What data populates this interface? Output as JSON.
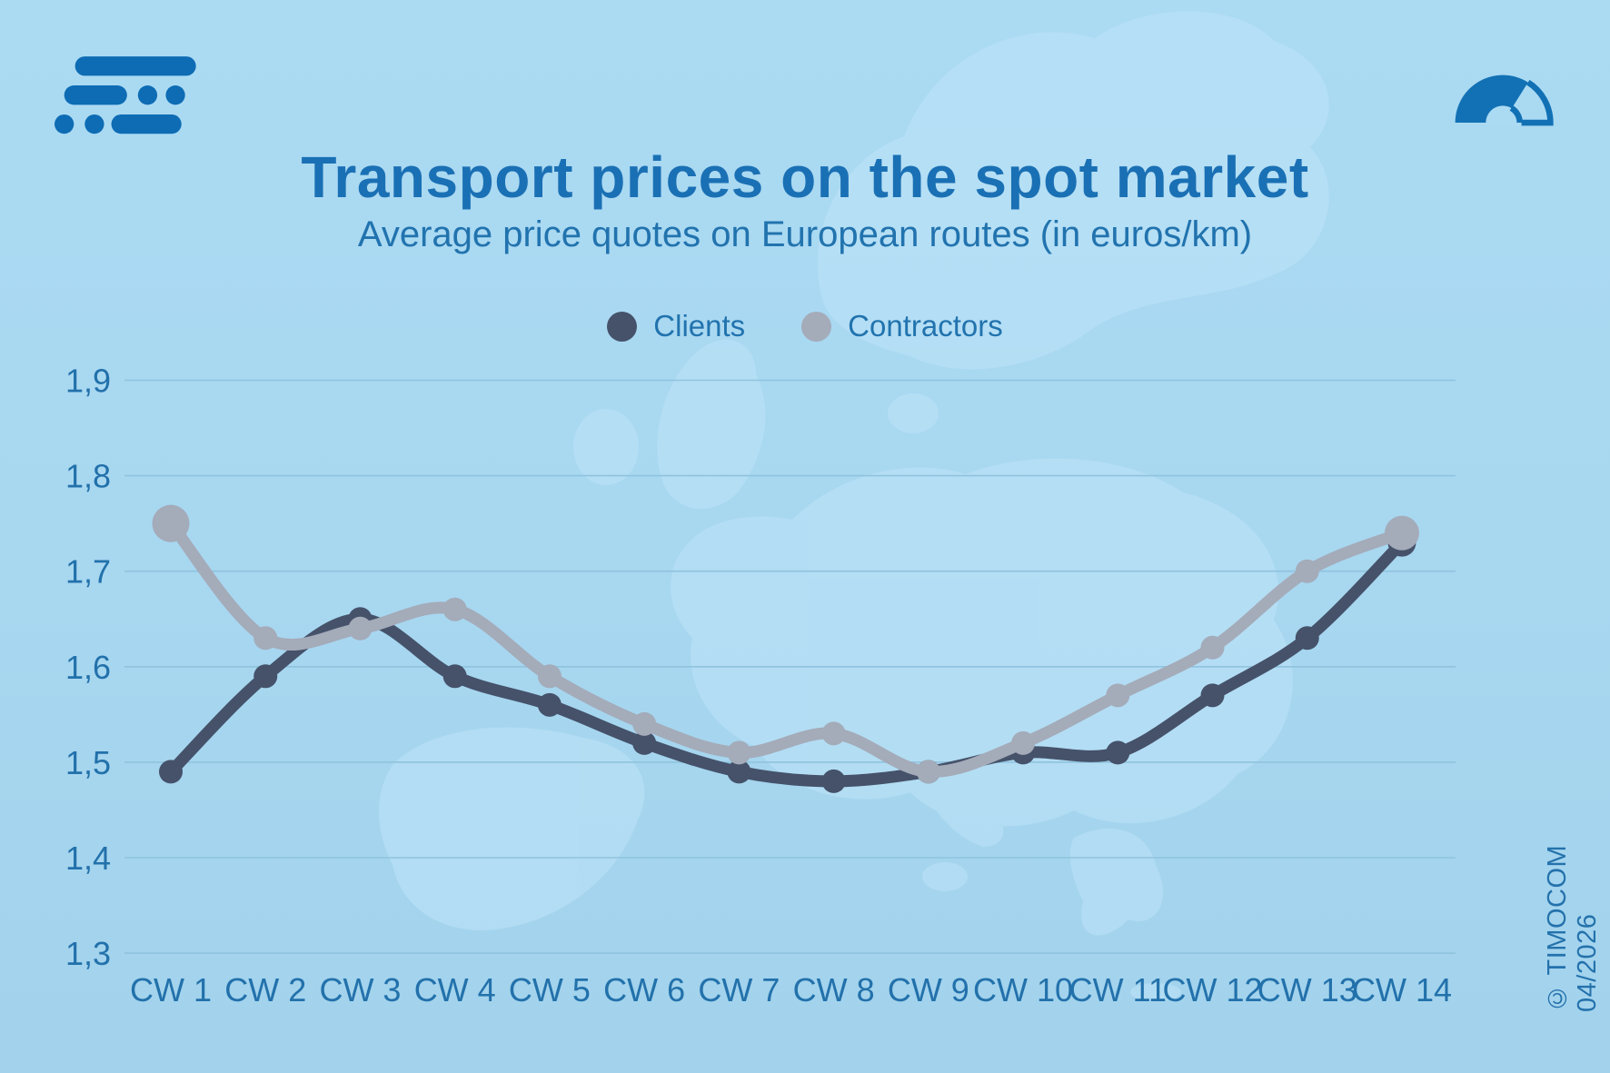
{
  "page": {
    "background_top": "#abdaf3",
    "background_bottom": "#a2d2ec",
    "map_land_color": "#bbe2f7"
  },
  "header": {
    "title": "Transport prices on the spot market",
    "subtitle": "Average price quotes on European routes (in euros/km)",
    "title_color": "#1a70b4",
    "subtitle_color": "#2173ae",
    "brand_icon": "brand-logo",
    "gauge_icon": "speedometer-gauge",
    "icon_color": "#0d6cb4"
  },
  "legend": {
    "items": [
      {
        "label": "Clients",
        "color": "#45526A"
      },
      {
        "label": "Contractors",
        "color": "#A4ABB9"
      }
    ]
  },
  "copyright": "© TIMOCOM 04/2026",
  "chart_data": {
    "type": "line",
    "title": "Transport prices on the spot market",
    "subtitle": "Average price quotes on European routes (in euros/km)",
    "unit": "euros/km",
    "categories": [
      "CW 1",
      "CW 2",
      "CW 3",
      "CW 4",
      "CW 5",
      "CW 6",
      "CW 7",
      "CW 8",
      "CW 9",
      "CW 10",
      "CW 11",
      "CW 12",
      "CW 13",
      "CW 14"
    ],
    "series": [
      {
        "name": "Clients",
        "color": "#45526A",
        "values": [
          1.49,
          1.59,
          1.65,
          1.59,
          1.56,
          1.52,
          1.49,
          1.48,
          1.49,
          1.51,
          1.51,
          1.57,
          1.63,
          1.73
        ]
      },
      {
        "name": "Contractors",
        "color": "#A4ABB9",
        "values": [
          1.75,
          1.63,
          1.64,
          1.66,
          1.59,
          1.54,
          1.51,
          1.53,
          1.49,
          1.52,
          1.57,
          1.62,
          1.7,
          1.74
        ]
      }
    ],
    "ylim": [
      1.3,
      1.9
    ],
    "yticks": [
      1.9,
      1.8,
      1.7,
      1.6,
      1.5,
      1.4,
      1.3
    ],
    "ytick_labels": [
      "1,9",
      "1,8",
      "1,7",
      "1,6",
      "1,5",
      "1,4",
      "1,3"
    ],
    "grid": true,
    "legend_position": "top",
    "axis_color": "#2271ab",
    "gridline_color": "#8fc3de"
  }
}
